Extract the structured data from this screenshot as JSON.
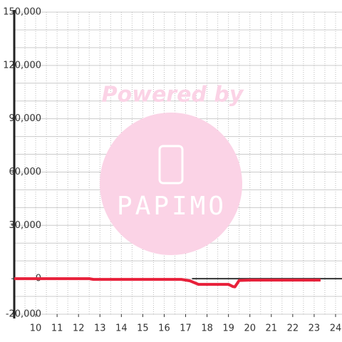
{
  "chart_data": {
    "type": "line",
    "watermark": {
      "line1": "Powered by",
      "line2": "PAPIMO"
    },
    "x": [
      9,
      10,
      11,
      12,
      12.5,
      12.7,
      13,
      14,
      15,
      16,
      16.8,
      17.2,
      17.6,
      18,
      19,
      19.2,
      19.3,
      19.5,
      20,
      21,
      22,
      23,
      23.3
    ],
    "series": [
      {
        "color": "#e8203a",
        "values": [
          0,
          0,
          0,
          0,
          0,
          -400,
          -400,
          -400,
          -400,
          -400,
          -400,
          -1200,
          -3200,
          -3200,
          -3200,
          -4400,
          -4600,
          -1000,
          -800,
          -800,
          -800,
          -800,
          -800
        ]
      }
    ],
    "xlim": [
      9,
      24.3
    ],
    "xticks": [
      10,
      11,
      12,
      13,
      14,
      15,
      16,
      17,
      18,
      19,
      20,
      21,
      22,
      23,
      24
    ],
    "ylim": [
      -20000,
      150000
    ],
    "yticks": [
      {
        "value": -20000,
        "label": "-20,000"
      },
      0,
      {
        "value": 30000,
        "label": "30,000"
      },
      {
        "value": 60000,
        "label": "60,000"
      },
      {
        "value": 90000,
        "label": "90,000"
      },
      {
        "value": 120000,
        "label": "120,000"
      },
      {
        "value": 150000,
        "label": "150,000"
      }
    ],
    "ygrid_step": 10000,
    "xgrid_step": 0.5,
    "grid": true
  }
}
